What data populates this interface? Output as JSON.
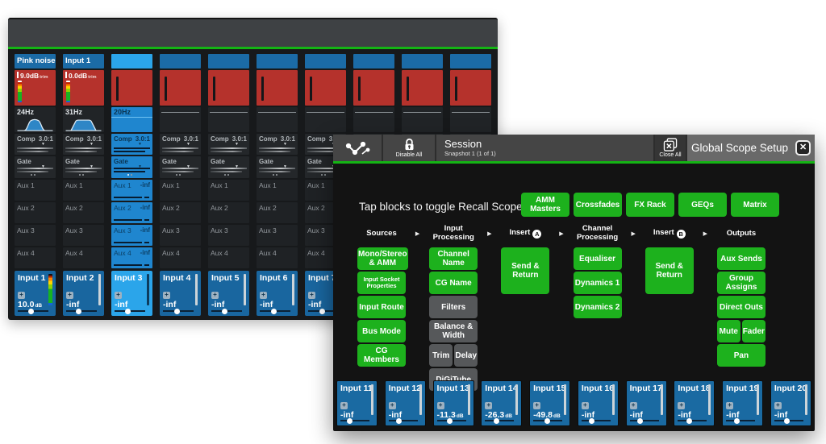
{
  "mixer": {
    "labels": {
      "comp": "Comp",
      "ratio": "3.0:1",
      "gate": "Gate",
      "aux": [
        "Aux 1",
        "Aux 2",
        "Aux 3",
        "Aux 4"
      ]
    },
    "channels": [
      {
        "name": "Pink noise",
        "trim": {
          "value": "9.0",
          "unit": "dB",
          "suffix": "trim"
        },
        "hpf": "24Hz",
        "curve": "bell",
        "meter": true,
        "fader": {
          "name": "Input 1",
          "value": "10.0",
          "unit": "dB",
          "knob": 42,
          "meter": true
        }
      },
      {
        "name": "Input 1",
        "trim": {
          "value": "0.0",
          "unit": "dB",
          "suffix": "trim"
        },
        "hpf": "31Hz",
        "curve": "shelf",
        "meter": true,
        "fader": {
          "name": "Input 2",
          "value": "-inf",
          "knob": 40
        }
      },
      {
        "selected": true,
        "hpf": "20Hz",
        "curve": "none",
        "aux_value": "-inf",
        "fader": {
          "name": "Input 3",
          "value": "-inf",
          "knob": 42,
          "selected": true
        }
      },
      {
        "curve": "flat",
        "fader": {
          "name": "Input 4",
          "value": "-inf",
          "knob": 45
        }
      },
      {
        "curve": "flat",
        "fader": {
          "name": "Input 5",
          "value": "-inf",
          "knob": 42
        }
      },
      {
        "curve": "flat",
        "fader": {
          "name": "Input 6",
          "value": "-inf",
          "knob": 45
        }
      },
      {
        "curve": "flat",
        "fader": {
          "name": "Input 7",
          "value": "-inf",
          "knob": 45
        }
      },
      {
        "curve": "flat"
      },
      {
        "curve": "flat"
      },
      {
        "curve": "flat"
      }
    ]
  },
  "dialog": {
    "header": {
      "session_title": "Session",
      "session_subtitle": "Snapshot 1 (1 of 1)",
      "disable_all": "Disable All",
      "close_all": "Close All",
      "title": "Global Scope Setup",
      "close_glyph": "✕"
    },
    "instruction": "Tap blocks to toggle Recall Scope",
    "top_buttons": [
      "AMM Masters",
      "Crossfades",
      "FX Rack",
      "GEQs",
      "Matrix"
    ],
    "flow": [
      {
        "header": "Sources",
        "rows": [
          [
            {
              "label": "Mono/Stereo & AMM",
              "on": true
            }
          ],
          [
            {
              "label": "Input Socket Properties",
              "on": true,
              "small": true
            }
          ],
          [
            {
              "label": "Input Route",
              "on": true
            }
          ],
          [
            {
              "label": "Bus Mode",
              "on": true
            }
          ],
          [
            {
              "label": "CG Members",
              "on": true
            }
          ]
        ]
      },
      {
        "header": "Input Processing",
        "rows": [
          [
            {
              "label": "Channel Name",
              "on": true
            }
          ],
          [
            {
              "label": "CG Name",
              "on": true
            }
          ],
          [
            {
              "label": "Filters",
              "on": false
            }
          ],
          [
            {
              "label": "Balance & Width",
              "on": false
            }
          ],
          [
            {
              "label": "Trim",
              "on": false
            },
            {
              "label": "Delay",
              "on": false
            }
          ],
          [
            {
              "label": "DiGiTube",
              "on": false
            }
          ]
        ]
      },
      {
        "header": "Insert",
        "badge": "A",
        "rows": [
          [
            {
              "label": "Send & Return",
              "on": true,
              "tall": true
            }
          ]
        ]
      },
      {
        "header": "Channel Processing",
        "rows": [
          [
            {
              "label": "Equaliser",
              "on": true
            }
          ],
          [
            {
              "label": "Dynamics 1",
              "on": true
            }
          ],
          [
            {
              "label": "Dynamics 2",
              "on": true
            }
          ]
        ]
      },
      {
        "header": "Insert",
        "badge": "B",
        "rows": [
          [
            {
              "label": "Send & Return",
              "on": true,
              "tall": true
            }
          ]
        ]
      },
      {
        "header": "Outputs",
        "rows": [
          [
            {
              "label": "Aux Sends",
              "on": true
            }
          ],
          [
            {
              "label": "Group Assigns",
              "on": true
            }
          ],
          [
            {
              "label": "Direct Outs",
              "on": true
            }
          ],
          [
            {
              "label": "Mute",
              "on": true
            },
            {
              "label": "Fader",
              "on": true
            }
          ],
          [
            {
              "label": "Pan",
              "on": true
            }
          ]
        ]
      }
    ],
    "strips": [
      {
        "name": "Input 11",
        "value": "-inf",
        "knob": 30
      },
      {
        "name": "Input 12",
        "value": "-inf",
        "knob": 35
      },
      {
        "name": "Input 13",
        "value": "-11.3",
        "unit": "dB",
        "knob": 42
      },
      {
        "name": "Input 14",
        "value": "-26.3",
        "unit": "dB",
        "knob": 38
      },
      {
        "name": "Input 15",
        "value": "-49.8",
        "unit": "dB",
        "knob": 48
      },
      {
        "name": "Input 16",
        "value": "-inf",
        "knob": 35
      },
      {
        "name": "Input 17",
        "value": "-inf",
        "knob": 35
      },
      {
        "name": "Input 18",
        "value": "-inf",
        "knob": 38
      },
      {
        "name": "Input 19",
        "value": "-inf",
        "knob": 35
      },
      {
        "name": "Input 20",
        "value": "-inf",
        "knob": 42
      }
    ],
    "colors": {
      "accent_green": "#14b414",
      "button_green": "#1db11d",
      "button_gray": "#56585a",
      "header_blue": "#1b6ba6",
      "selected_blue": "#2ba5ea",
      "meter_red": "#b5322c",
      "fader_blue": "#19669f"
    }
  }
}
